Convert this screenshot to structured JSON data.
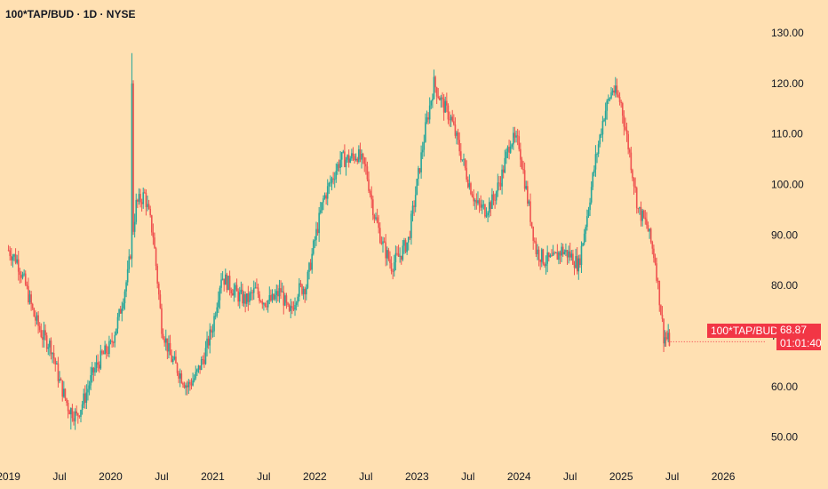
{
  "header": {
    "title": "100*TAP/BUD · 1D · NYSE"
  },
  "price_tag": {
    "symbol": "100*TAP/BUD",
    "last_price": "68.87",
    "countdown": "01:01:40"
  },
  "colors": {
    "up": "#26a69a",
    "down": "#ef5350",
    "last_price_bg": "#f23645",
    "background": "#ffe0b2"
  },
  "chart_data": {
    "type": "candlestick",
    "title": "100*TAP/BUD · 1D · NYSE",
    "xlabel": "",
    "ylabel": "",
    "y_axis": {
      "position": "right",
      "ticks": [
        50,
        60,
        70,
        80,
        90,
        100,
        110,
        120,
        130
      ],
      "tick_labels": [
        "50.00",
        "60.00",
        "70.00",
        "80.00",
        "90.00",
        "100.00",
        "110.00",
        "120.00",
        "130.00"
      ],
      "ylim": [
        45,
        133
      ]
    },
    "x_axis": {
      "tick_labels": [
        "2019",
        "Jul",
        "2020",
        "Jul",
        "2021",
        "Jul",
        "2022",
        "Jul",
        "2023",
        "Jul",
        "2024",
        "Jul",
        "2025",
        "Jul",
        "2026"
      ],
      "tick_dates": [
        "2019-01",
        "2019-07",
        "2020-01",
        "2020-07",
        "2021-01",
        "2021-07",
        "2022-01",
        "2022-07",
        "2023-01",
        "2023-07",
        "2024-01",
        "2024-07",
        "2025-01",
        "2025-07",
        "2026-01"
      ],
      "xlim": [
        "2018-12",
        "2026-06"
      ]
    },
    "close_path": {
      "dates": [
        "2019-01",
        "2019-02",
        "2019-03",
        "2019-04",
        "2019-05",
        "2019-06",
        "2019-07",
        "2019-08",
        "2019-09",
        "2019-10",
        "2019-11",
        "2019-12",
        "2020-01",
        "2020-02",
        "2020-03",
        "2020-04",
        "2020-05",
        "2020-06",
        "2020-07",
        "2020-08",
        "2020-09",
        "2020-10",
        "2020-11",
        "2020-12",
        "2021-01",
        "2021-02",
        "2021-03",
        "2021-04",
        "2021-05",
        "2021-06",
        "2021-07",
        "2021-08",
        "2021-09",
        "2021-10",
        "2021-11",
        "2021-12",
        "2022-01",
        "2022-02",
        "2022-03",
        "2022-04",
        "2022-05",
        "2022-06",
        "2022-07",
        "2022-08",
        "2022-09",
        "2022-10",
        "2022-11",
        "2022-12",
        "2023-01",
        "2023-02",
        "2023-03",
        "2023-04",
        "2023-05",
        "2023-06",
        "2023-07",
        "2023-08",
        "2023-09",
        "2023-10",
        "2023-11",
        "2023-12",
        "2024-01",
        "2024-02",
        "2024-03",
        "2024-04",
        "2024-05",
        "2024-06",
        "2024-07",
        "2024-08",
        "2024-09",
        "2024-10",
        "2024-11",
        "2024-12",
        "2025-01",
        "2025-02",
        "2025-03",
        "2025-04",
        "2025-05",
        "2025-06"
      ],
      "values": [
        87,
        85,
        80,
        74,
        70,
        68,
        61,
        56,
        54,
        58,
        63,
        66,
        68,
        74,
        82,
        96,
        98,
        90,
        72,
        66,
        63,
        60,
        62,
        66,
        72,
        82,
        80,
        78,
        77,
        79,
        77,
        77,
        79,
        74,
        79,
        80,
        89,
        97,
        101,
        105,
        105,
        106,
        103,
        94,
        88,
        84,
        86,
        89,
        100,
        111,
        120,
        116,
        113,
        107,
        101,
        96,
        95,
        97,
        102,
        109,
        108,
        97,
        87,
        85,
        85,
        87,
        86,
        84,
        94,
        105,
        114,
        119,
        116,
        106,
        95,
        92,
        85,
        70
      ],
      "last": 68.87
    },
    "annotations": {
      "high": 126,
      "low": 51.5
    },
    "grid": false,
    "legend": "none"
  }
}
